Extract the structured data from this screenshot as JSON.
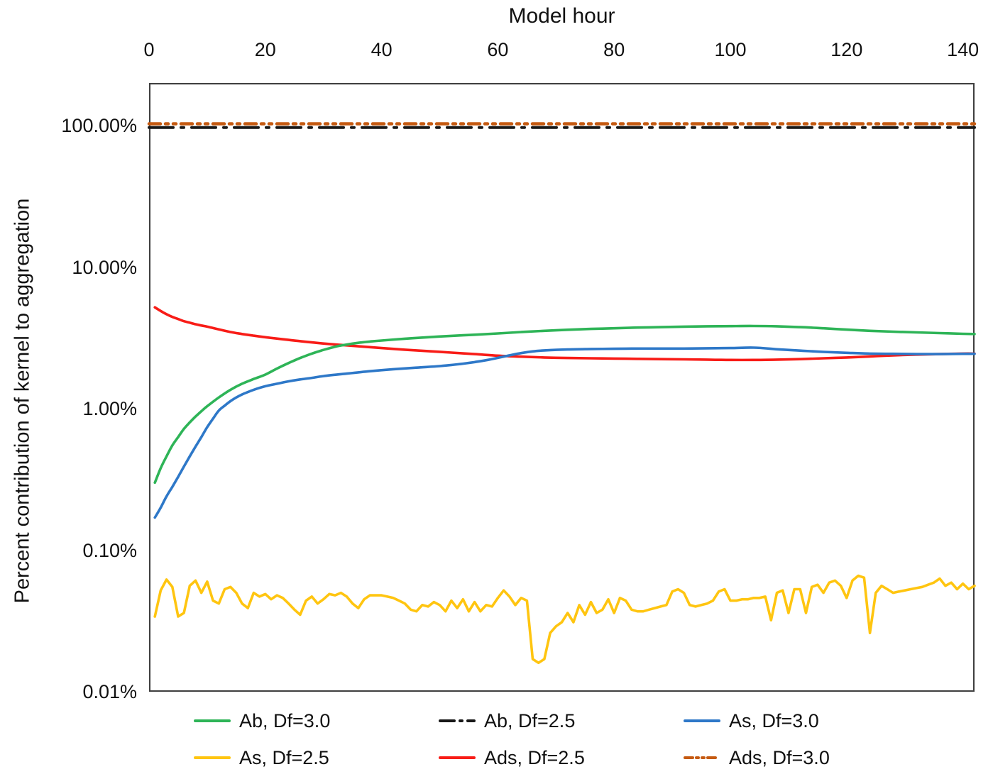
{
  "chart_data": {
    "type": "line",
    "title": "",
    "xlabel": "Model hour",
    "ylabel": "Percent contribution of kernel to aggregation",
    "grid": "off",
    "legend_position": "bottom",
    "x_axis": {
      "min": 0,
      "max": 142,
      "ticks": [
        0,
        20,
        40,
        60,
        80,
        100,
        120,
        140
      ],
      "labels_position": "top"
    },
    "y_axis": {
      "scale": "log",
      "unit": "%",
      "min_percent": 0.01,
      "max_percent": 200,
      "ticks": [
        {
          "v": 100,
          "label": "100.00%"
        },
        {
          "v": 10,
          "label": "10.00%"
        },
        {
          "v": 1,
          "label": "1.00%"
        },
        {
          "v": 0.1,
          "label": "0.10%"
        },
        {
          "v": 0.01,
          "label": "0.01%"
        }
      ]
    },
    "z_order": [
      1,
      5,
      4,
      0,
      2,
      3
    ],
    "series": [
      {
        "name": "Ab, Df=3.0",
        "color": "#2eb457",
        "line_style": "solid",
        "width": 3.6,
        "smooth": true,
        "points": [
          [
            1,
            0.3
          ],
          [
            2,
            0.38
          ],
          [
            3,
            0.46
          ],
          [
            4,
            0.55
          ],
          [
            5,
            0.63
          ],
          [
            6,
            0.72
          ],
          [
            7,
            0.8
          ],
          [
            8,
            0.88
          ],
          [
            9,
            0.96
          ],
          [
            10,
            1.04
          ],
          [
            12,
            1.2
          ],
          [
            14,
            1.36
          ],
          [
            16,
            1.5
          ],
          [
            18,
            1.62
          ],
          [
            20,
            1.74
          ],
          [
            22,
            1.92
          ],
          [
            24,
            2.1
          ],
          [
            26,
            2.28
          ],
          [
            28,
            2.45
          ],
          [
            30,
            2.6
          ],
          [
            32,
            2.74
          ],
          [
            34,
            2.84
          ],
          [
            36,
            2.92
          ],
          [
            38,
            2.98
          ],
          [
            40,
            3.03
          ],
          [
            44,
            3.12
          ],
          [
            48,
            3.2
          ],
          [
            52,
            3.27
          ],
          [
            56,
            3.33
          ],
          [
            60,
            3.4
          ],
          [
            64,
            3.48
          ],
          [
            68,
            3.55
          ],
          [
            72,
            3.61
          ],
          [
            76,
            3.66
          ],
          [
            80,
            3.7
          ],
          [
            84,
            3.74
          ],
          [
            88,
            3.77
          ],
          [
            92,
            3.8
          ],
          [
            96,
            3.82
          ],
          [
            100,
            3.83
          ],
          [
            104,
            3.84
          ],
          [
            108,
            3.82
          ],
          [
            112,
            3.77
          ],
          [
            116,
            3.7
          ],
          [
            120,
            3.62
          ],
          [
            124,
            3.55
          ],
          [
            128,
            3.5
          ],
          [
            132,
            3.46
          ],
          [
            136,
            3.42
          ],
          [
            140,
            3.38
          ],
          [
            142,
            3.37
          ]
        ]
      },
      {
        "name": "Ab, Df=2.5",
        "color": "#171717",
        "line_style": "long-dash-dot",
        "width": 4,
        "smooth": false,
        "points": [
          [
            0,
            97
          ],
          [
            142,
            97
          ]
        ]
      },
      {
        "name": "As, Df=3.0",
        "color": "#2e78c8",
        "line_style": "solid",
        "width": 3.6,
        "smooth": true,
        "points": [
          [
            1,
            0.17
          ],
          [
            2,
            0.2
          ],
          [
            3,
            0.24
          ],
          [
            4,
            0.28
          ],
          [
            5,
            0.33
          ],
          [
            6,
            0.39
          ],
          [
            7,
            0.46
          ],
          [
            8,
            0.54
          ],
          [
            9,
            0.63
          ],
          [
            10,
            0.74
          ],
          [
            11,
            0.85
          ],
          [
            12,
            0.97
          ],
          [
            13,
            1.05
          ],
          [
            14,
            1.13
          ],
          [
            15,
            1.2
          ],
          [
            16,
            1.26
          ],
          [
            17,
            1.31
          ],
          [
            18,
            1.36
          ],
          [
            20,
            1.44
          ],
          [
            22,
            1.5
          ],
          [
            24,
            1.56
          ],
          [
            26,
            1.61
          ],
          [
            28,
            1.65
          ],
          [
            30,
            1.7
          ],
          [
            34,
            1.77
          ],
          [
            38,
            1.84
          ],
          [
            42,
            1.9
          ],
          [
            46,
            1.95
          ],
          [
            50,
            2.0
          ],
          [
            54,
            2.08
          ],
          [
            58,
            2.2
          ],
          [
            62,
            2.38
          ],
          [
            64,
            2.47
          ],
          [
            66,
            2.54
          ],
          [
            68,
            2.58
          ],
          [
            72,
            2.62
          ],
          [
            76,
            2.64
          ],
          [
            80,
            2.65
          ],
          [
            84,
            2.66
          ],
          [
            88,
            2.66
          ],
          [
            92,
            2.66
          ],
          [
            96,
            2.67
          ],
          [
            100,
            2.68
          ],
          [
            104,
            2.7
          ],
          [
            108,
            2.63
          ],
          [
            112,
            2.57
          ],
          [
            116,
            2.52
          ],
          [
            120,
            2.48
          ],
          [
            124,
            2.45
          ],
          [
            128,
            2.44
          ],
          [
            132,
            2.43
          ],
          [
            136,
            2.43
          ],
          [
            140,
            2.44
          ],
          [
            142,
            2.44
          ]
        ]
      },
      {
        "name": "As, Df=2.5",
        "color": "#ffc510",
        "line_style": "solid",
        "width": 3.6,
        "smooth": false,
        "points": [
          [
            1,
            0.034
          ],
          [
            2,
            0.052
          ],
          [
            3,
            0.062
          ],
          [
            4,
            0.055
          ],
          [
            5,
            0.034
          ],
          [
            6,
            0.036
          ],
          [
            7,
            0.056
          ],
          [
            8,
            0.061
          ],
          [
            9,
            0.05
          ],
          [
            10,
            0.06
          ],
          [
            11,
            0.044
          ],
          [
            12,
            0.042
          ],
          [
            13,
            0.053
          ],
          [
            14,
            0.055
          ],
          [
            15,
            0.05
          ],
          [
            16,
            0.042
          ],
          [
            17,
            0.039
          ],
          [
            18,
            0.05
          ],
          [
            19,
            0.047
          ],
          [
            20,
            0.049
          ],
          [
            21,
            0.045
          ],
          [
            22,
            0.048
          ],
          [
            23,
            0.046
          ],
          [
            24,
            0.042
          ],
          [
            25,
            0.038
          ],
          [
            26,
            0.035
          ],
          [
            27,
            0.044
          ],
          [
            28,
            0.047
          ],
          [
            29,
            0.042
          ],
          [
            30,
            0.045
          ],
          [
            31,
            0.049
          ],
          [
            32,
            0.048
          ],
          [
            33,
            0.05
          ],
          [
            34,
            0.047
          ],
          [
            35,
            0.042
          ],
          [
            36,
            0.039
          ],
          [
            37,
            0.045
          ],
          [
            38,
            0.048
          ],
          [
            39,
            0.048
          ],
          [
            40,
            0.048
          ],
          [
            41,
            0.047
          ],
          [
            42,
            0.046
          ],
          [
            43,
            0.044
          ],
          [
            44,
            0.042
          ],
          [
            45,
            0.038
          ],
          [
            46,
            0.037
          ],
          [
            47,
            0.041
          ],
          [
            48,
            0.04
          ],
          [
            49,
            0.043
          ],
          [
            50,
            0.041
          ],
          [
            51,
            0.037
          ],
          [
            52,
            0.044
          ],
          [
            53,
            0.039
          ],
          [
            54,
            0.045
          ],
          [
            55,
            0.037
          ],
          [
            56,
            0.043
          ],
          [
            57,
            0.037
          ],
          [
            58,
            0.041
          ],
          [
            59,
            0.04
          ],
          [
            60,
            0.046
          ],
          [
            61,
            0.052
          ],
          [
            62,
            0.047
          ],
          [
            63,
            0.041
          ],
          [
            64,
            0.046
          ],
          [
            65,
            0.044
          ],
          [
            66,
            0.017
          ],
          [
            67,
            0.016
          ],
          [
            68,
            0.017
          ],
          [
            69,
            0.026
          ],
          [
            70,
            0.029
          ],
          [
            71,
            0.031
          ],
          [
            72,
            0.036
          ],
          [
            73,
            0.031
          ],
          [
            74,
            0.041
          ],
          [
            75,
            0.035
          ],
          [
            76,
            0.043
          ],
          [
            77,
            0.036
          ],
          [
            78,
            0.038
          ],
          [
            79,
            0.045
          ],
          [
            80,
            0.036
          ],
          [
            81,
            0.046
          ],
          [
            82,
            0.044
          ],
          [
            83,
            0.038
          ],
          [
            84,
            0.037
          ],
          [
            85,
            0.037
          ],
          [
            86,
            0.038
          ],
          [
            87,
            0.039
          ],
          [
            88,
            0.04
          ],
          [
            89,
            0.041
          ],
          [
            90,
            0.051
          ],
          [
            91,
            0.053
          ],
          [
            92,
            0.05
          ],
          [
            93,
            0.041
          ],
          [
            94,
            0.04
          ],
          [
            95,
            0.041
          ],
          [
            96,
            0.042
          ],
          [
            97,
            0.044
          ],
          [
            98,
            0.051
          ],
          [
            99,
            0.053
          ],
          [
            100,
            0.044
          ],
          [
            101,
            0.044
          ],
          [
            102,
            0.045
          ],
          [
            103,
            0.045
          ],
          [
            104,
            0.046
          ],
          [
            105,
            0.046
          ],
          [
            106,
            0.047
          ],
          [
            107,
            0.032
          ],
          [
            108,
            0.05
          ],
          [
            109,
            0.052
          ],
          [
            110,
            0.036
          ],
          [
            111,
            0.053
          ],
          [
            112,
            0.053
          ],
          [
            113,
            0.036
          ],
          [
            114,
            0.055
          ],
          [
            115,
            0.057
          ],
          [
            116,
            0.05
          ],
          [
            117,
            0.059
          ],
          [
            118,
            0.061
          ],
          [
            119,
            0.056
          ],
          [
            120,
            0.046
          ],
          [
            121,
            0.061
          ],
          [
            122,
            0.066
          ],
          [
            123,
            0.064
          ],
          [
            124,
            0.026
          ],
          [
            125,
            0.05
          ],
          [
            126,
            0.056
          ],
          [
            127,
            0.053
          ],
          [
            128,
            0.05
          ],
          [
            129,
            0.051
          ],
          [
            130,
            0.052
          ],
          [
            131,
            0.053
          ],
          [
            132,
            0.054
          ],
          [
            133,
            0.055
          ],
          [
            134,
            0.057
          ],
          [
            135,
            0.059
          ],
          [
            136,
            0.063
          ],
          [
            137,
            0.056
          ],
          [
            138,
            0.059
          ],
          [
            139,
            0.053
          ],
          [
            140,
            0.058
          ],
          [
            141,
            0.053
          ],
          [
            142,
            0.056
          ]
        ]
      },
      {
        "name": "Ads, Df=2.5",
        "color": "#f81c17",
        "line_style": "solid",
        "width": 3.6,
        "smooth": true,
        "points": [
          [
            1,
            5.2
          ],
          [
            2,
            4.9
          ],
          [
            3,
            4.65
          ],
          [
            4,
            4.45
          ],
          [
            5,
            4.3
          ],
          [
            6,
            4.15
          ],
          [
            7,
            4.05
          ],
          [
            8,
            3.95
          ],
          [
            9,
            3.87
          ],
          [
            10,
            3.8
          ],
          [
            12,
            3.63
          ],
          [
            14,
            3.48
          ],
          [
            16,
            3.37
          ],
          [
            18,
            3.28
          ],
          [
            20,
            3.2
          ],
          [
            24,
            3.06
          ],
          [
            28,
            2.94
          ],
          [
            32,
            2.84
          ],
          [
            36,
            2.76
          ],
          [
            40,
            2.68
          ],
          [
            44,
            2.61
          ],
          [
            48,
            2.55
          ],
          [
            52,
            2.49
          ],
          [
            56,
            2.43
          ],
          [
            60,
            2.37
          ],
          [
            64,
            2.33
          ],
          [
            68,
            2.3
          ],
          [
            72,
            2.28
          ],
          [
            76,
            2.27
          ],
          [
            80,
            2.26
          ],
          [
            84,
            2.25
          ],
          [
            88,
            2.24
          ],
          [
            92,
            2.23
          ],
          [
            96,
            2.22
          ],
          [
            100,
            2.21
          ],
          [
            104,
            2.21
          ],
          [
            108,
            2.22
          ],
          [
            112,
            2.24
          ],
          [
            116,
            2.27
          ],
          [
            120,
            2.3
          ],
          [
            124,
            2.34
          ],
          [
            128,
            2.38
          ],
          [
            132,
            2.41
          ],
          [
            136,
            2.43
          ],
          [
            140,
            2.45
          ],
          [
            142,
            2.45
          ]
        ]
      },
      {
        "name": "Ads, Df=3.0",
        "color": "#c55a11",
        "line_style": "dash-dot-dot",
        "width": 4.5,
        "smooth": false,
        "points": [
          [
            0,
            103
          ],
          [
            142,
            103
          ]
        ]
      }
    ]
  }
}
